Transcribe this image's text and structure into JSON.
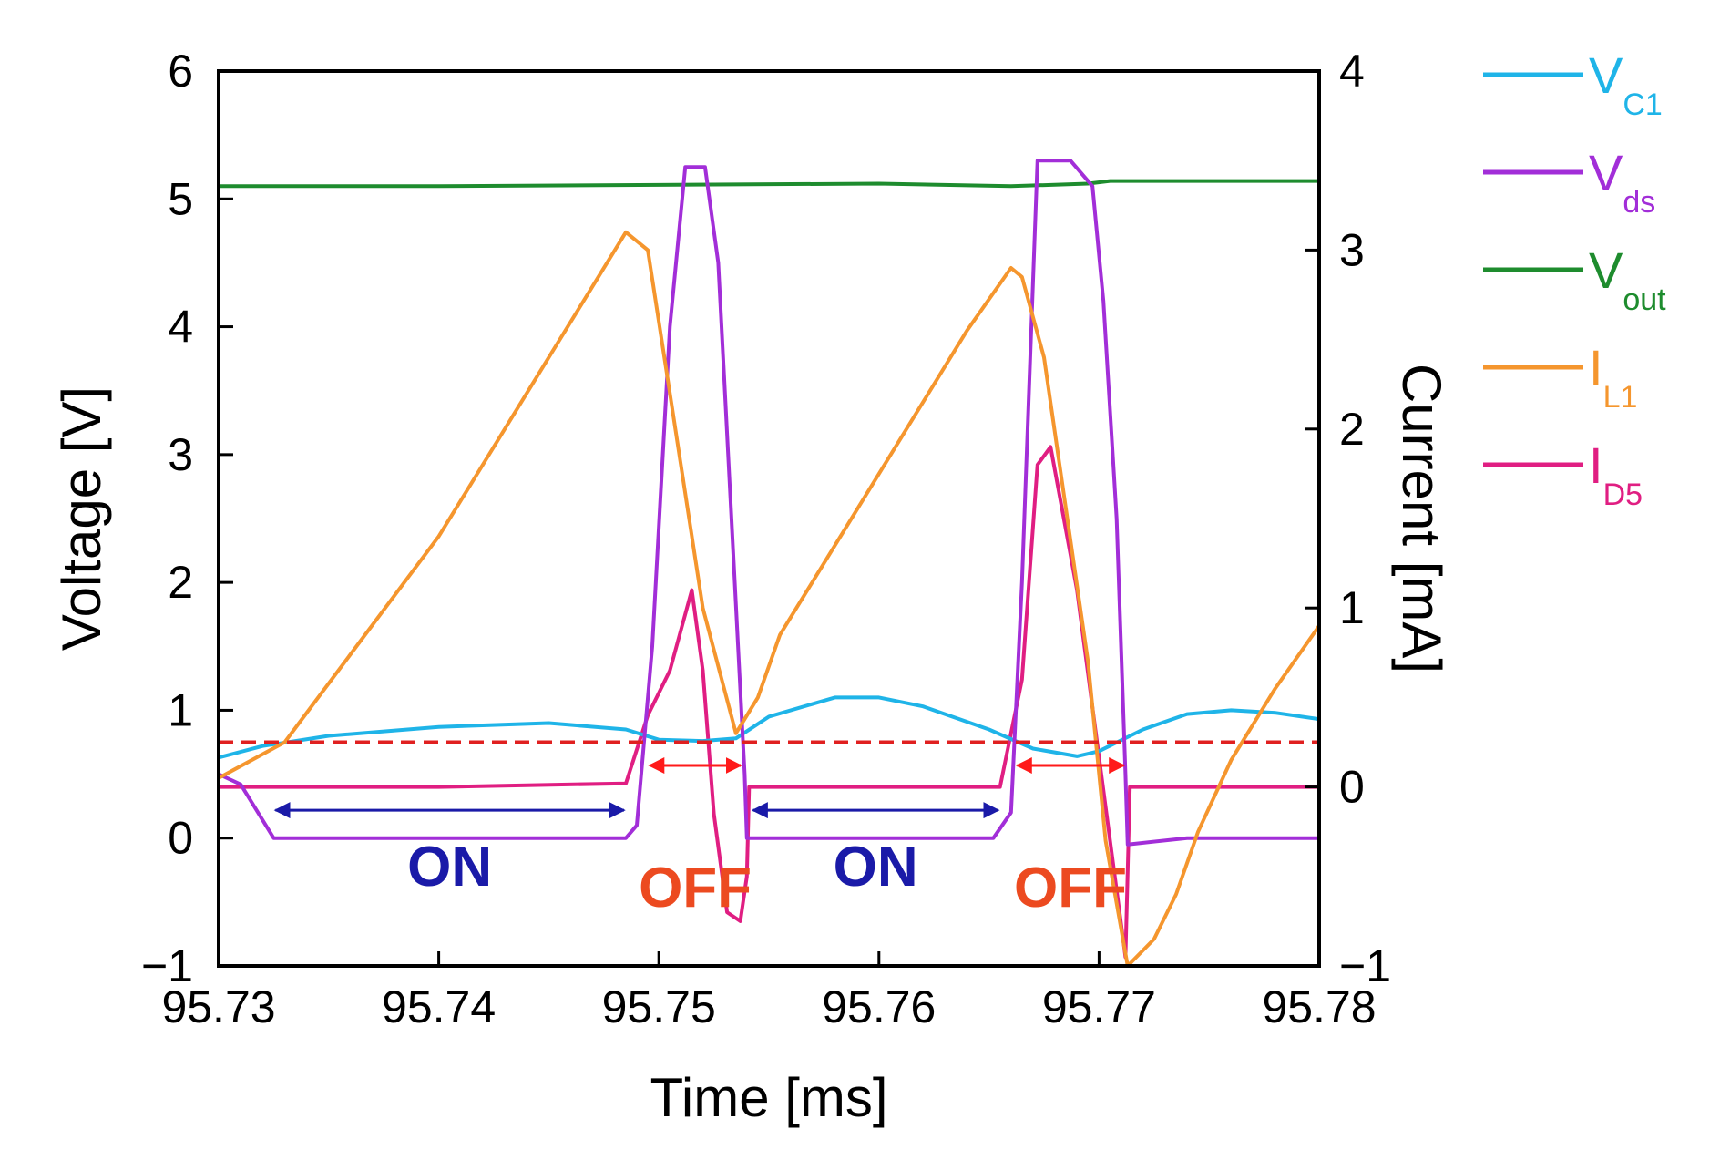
{
  "chart_data": {
    "type": "line",
    "xlabel": "Time [ms]",
    "ylabel_left": "Voltage [V]",
    "ylabel_right": "Current [mA]",
    "xlim": [
      95.73,
      95.78
    ],
    "ylim_left": [
      -1,
      6
    ],
    "ylim_right": [
      -1,
      4
    ],
    "x_ticks": [
      "95.73",
      "95.74",
      "95.75",
      "95.76",
      "95.77",
      "95.78"
    ],
    "y_left_ticks": [
      "−1",
      "0",
      "1",
      "2",
      "3",
      "4",
      "5",
      "6"
    ],
    "y_right_ticks": [
      "−1",
      "0",
      "1",
      "2",
      "3",
      "4"
    ],
    "grid": false,
    "legend_position": "right",
    "reference_line": {
      "axis": "left",
      "y": 0.75,
      "color": "#e02020",
      "style": "dashed"
    },
    "series": [
      {
        "name": "V",
        "sub": "C1",
        "axis": "left",
        "color": "#1fb4e8",
        "x": [
          95.73,
          95.732,
          95.735,
          95.74,
          95.745,
          95.7485,
          95.75,
          95.752,
          95.7535,
          95.755,
          95.758,
          95.76,
          95.762,
          95.765,
          95.767,
          95.769,
          95.77,
          95.772,
          95.774,
          95.776,
          95.778,
          95.78
        ],
        "y": [
          0.63,
          0.72,
          0.8,
          0.87,
          0.9,
          0.85,
          0.77,
          0.76,
          0.78,
          0.95,
          1.1,
          1.1,
          1.03,
          0.85,
          0.7,
          0.64,
          0.68,
          0.85,
          0.97,
          1.0,
          0.98,
          0.93
        ]
      },
      {
        "name": "V",
        "sub": "ds",
        "axis": "left",
        "color": "#a22ed8",
        "x": [
          95.73,
          95.731,
          95.7325,
          95.74,
          95.7485,
          95.749,
          95.7497,
          95.7505,
          95.7512,
          95.7521,
          95.7527,
          95.7533,
          95.7539,
          95.754,
          95.76,
          95.7652,
          95.766,
          95.7665,
          95.7672,
          95.7687,
          95.7697,
          95.7702,
          95.7708,
          95.7712,
          95.7713,
          95.774,
          95.78
        ],
        "y": [
          0.5,
          0.42,
          0.0,
          0.0,
          0.0,
          0.1,
          1.5,
          4.0,
          5.25,
          5.25,
          4.5,
          2.5,
          0.5,
          0.0,
          0.0,
          0.0,
          0.2,
          2.0,
          5.3,
          5.3,
          5.1,
          4.2,
          2.5,
          0.5,
          -0.05,
          0.0,
          0.0
        ]
      },
      {
        "name": "V",
        "sub": "out",
        "axis": "left",
        "color": "#1e8c2e",
        "x": [
          95.73,
          95.74,
          95.75,
          95.76,
          95.766,
          95.7695,
          95.7705,
          95.78
        ],
        "y": [
          5.1,
          5.1,
          5.11,
          5.12,
          5.1,
          5.12,
          5.14,
          5.14
        ]
      },
      {
        "name": "I",
        "sub": "L1",
        "axis": "right",
        "color": "#f5962e",
        "x": [
          95.73,
          95.733,
          95.74,
          95.745,
          95.7485,
          95.7495,
          95.7505,
          95.752,
          95.7535,
          95.7545,
          95.7555,
          95.76,
          95.764,
          95.766,
          95.7665,
          95.7675,
          95.7695,
          95.7703,
          95.7713,
          95.7725,
          95.7735,
          95.7745,
          95.776,
          95.778,
          95.78
        ],
        "y": [
          0.05,
          0.25,
          1.4,
          2.4,
          3.1,
          3.0,
          2.2,
          1.0,
          0.3,
          0.5,
          0.85,
          1.75,
          2.55,
          2.9,
          2.85,
          2.4,
          0.7,
          -0.3,
          -1.0,
          -0.85,
          -0.6,
          -0.25,
          0.15,
          0.55,
          0.9
        ]
      },
      {
        "name": "I",
        "sub": "D5",
        "axis": "right",
        "color": "#e01e82",
        "x": [
          95.73,
          95.731,
          95.74,
          95.7485,
          95.7495,
          95.7505,
          95.7515,
          95.752,
          95.7525,
          95.7531,
          95.7537,
          95.754,
          95.7541,
          95.76,
          95.7655,
          95.7665,
          95.7672,
          95.7678,
          95.769,
          95.7705,
          95.7712,
          95.7714,
          95.78
        ],
        "y": [
          0.0,
          0.0,
          0.0,
          0.02,
          0.4,
          0.65,
          1.1,
          0.65,
          -0.15,
          -0.7,
          -0.75,
          -0.5,
          0.0,
          0.0,
          0.0,
          0.6,
          1.8,
          1.9,
          1.1,
          -0.3,
          -0.95,
          0.0,
          0.0
        ]
      }
    ],
    "phases": [
      {
        "label": "ON",
        "x_start": 95.7325,
        "x_end": 95.7485,
        "color": "#1a1aa8"
      },
      {
        "label": "OFF",
        "x_start": 95.7495,
        "x_end": 95.7538,
        "color": "#ff1a1a",
        "text_color": "#ec4a20"
      },
      {
        "label": "ON",
        "x_start": 95.7542,
        "x_end": 95.7655,
        "color": "#1a1aa8"
      },
      {
        "label": "OFF",
        "x_start": 95.7662,
        "x_end": 95.7712,
        "color": "#ff1a1a",
        "text_color": "#ec4a20"
      }
    ]
  }
}
